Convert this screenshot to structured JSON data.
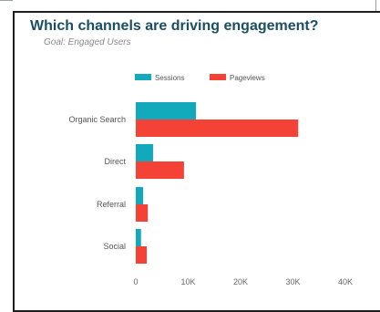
{
  "header": {
    "title": "Which channels are driving engagement?",
    "subtitle": "Goal: Engaged Users"
  },
  "colors": {
    "sessions": "#13a9bd",
    "pageviews": "#f44336",
    "title": "#1a4f63"
  },
  "chart_data": {
    "type": "bar",
    "orientation": "horizontal",
    "categories": [
      "Organic Search",
      "Direct",
      "Referral",
      "Social"
    ],
    "series": [
      {
        "name": "Sessions",
        "values": [
          11500,
          3300,
          1400,
          1000
        ]
      },
      {
        "name": "Pageviews",
        "values": [
          31000,
          9200,
          2300,
          2100
        ]
      }
    ],
    "xticks": [
      "0",
      "10K",
      "20K",
      "30K",
      "40K"
    ],
    "xlim": [
      0,
      40000
    ],
    "legend": "top-left",
    "grid": false
  }
}
